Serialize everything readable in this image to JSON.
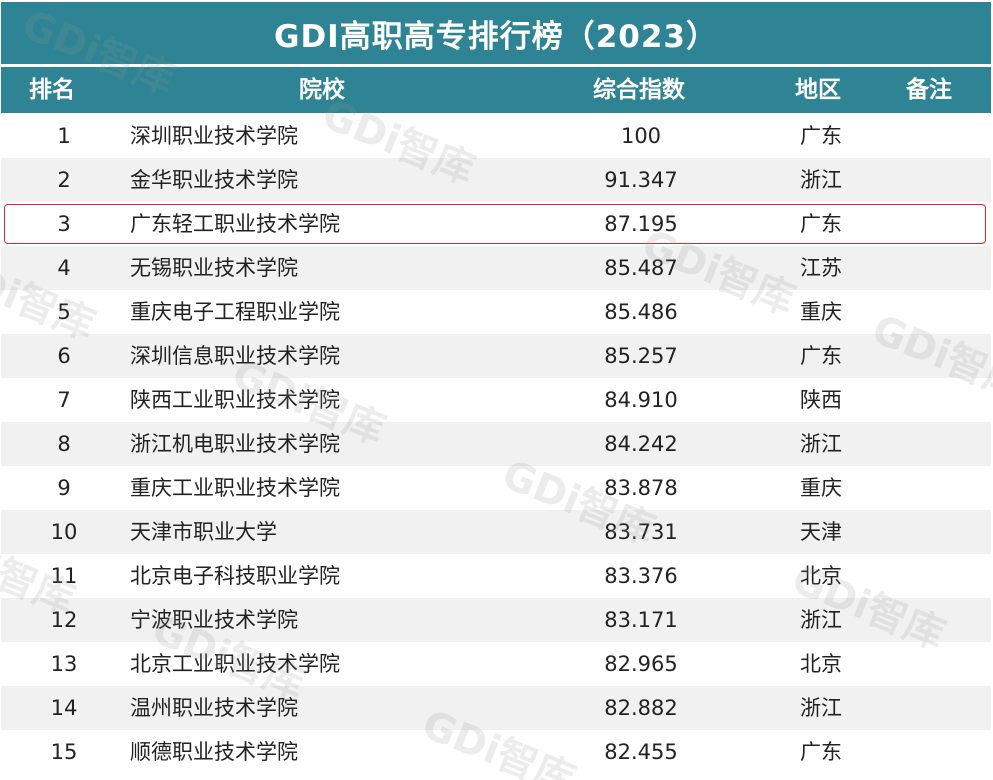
{
  "title": "GDI高职高专排行榜（2023）",
  "headers": {
    "rank": "排名",
    "school": "院校",
    "index": "综合指数",
    "region": "地区",
    "note": "备注"
  },
  "highlighted_rank": 3,
  "colors": {
    "header_bg": "#2e8494",
    "highlight_border": "#d9282f"
  },
  "watermark": "GDi智库",
  "rows": [
    {
      "rank": "1",
      "school": "深圳职业技术学院",
      "index": "100",
      "region": "广东",
      "note": ""
    },
    {
      "rank": "2",
      "school": "金华职业技术学院",
      "index": "91.347",
      "region": "浙江",
      "note": ""
    },
    {
      "rank": "3",
      "school": "广东轻工职业技术学院",
      "index": "87.195",
      "region": "广东",
      "note": ""
    },
    {
      "rank": "4",
      "school": "无锡职业技术学院",
      "index": "85.487",
      "region": "江苏",
      "note": ""
    },
    {
      "rank": "5",
      "school": "重庆电子工程职业学院",
      "index": "85.486",
      "region": "重庆",
      "note": ""
    },
    {
      "rank": "6",
      "school": "深圳信息职业技术学院",
      "index": "85.257",
      "region": "广东",
      "note": ""
    },
    {
      "rank": "7",
      "school": "陕西工业职业技术学院",
      "index": "84.910",
      "region": "陕西",
      "note": ""
    },
    {
      "rank": "8",
      "school": "浙江机电职业技术学院",
      "index": "84.242",
      "region": "浙江",
      "note": ""
    },
    {
      "rank": "9",
      "school": "重庆工业职业技术学院",
      "index": "83.878",
      "region": "重庆",
      "note": ""
    },
    {
      "rank": "10",
      "school": "天津市职业大学",
      "index": "83.731",
      "region": "天津",
      "note": ""
    },
    {
      "rank": "11",
      "school": "北京电子科技职业学院",
      "index": "83.376",
      "region": "北京",
      "note": ""
    },
    {
      "rank": "12",
      "school": "宁波职业技术学院",
      "index": "83.171",
      "region": "浙江",
      "note": ""
    },
    {
      "rank": "13",
      "school": "北京工业职业技术学院",
      "index": "82.965",
      "region": "北京",
      "note": ""
    },
    {
      "rank": "14",
      "school": "温州职业技术学院",
      "index": "82.882",
      "region": "浙江",
      "note": ""
    },
    {
      "rank": "15",
      "school": "顺德职业技术学院",
      "index": "82.455",
      "region": "广东",
      "note": ""
    }
  ]
}
